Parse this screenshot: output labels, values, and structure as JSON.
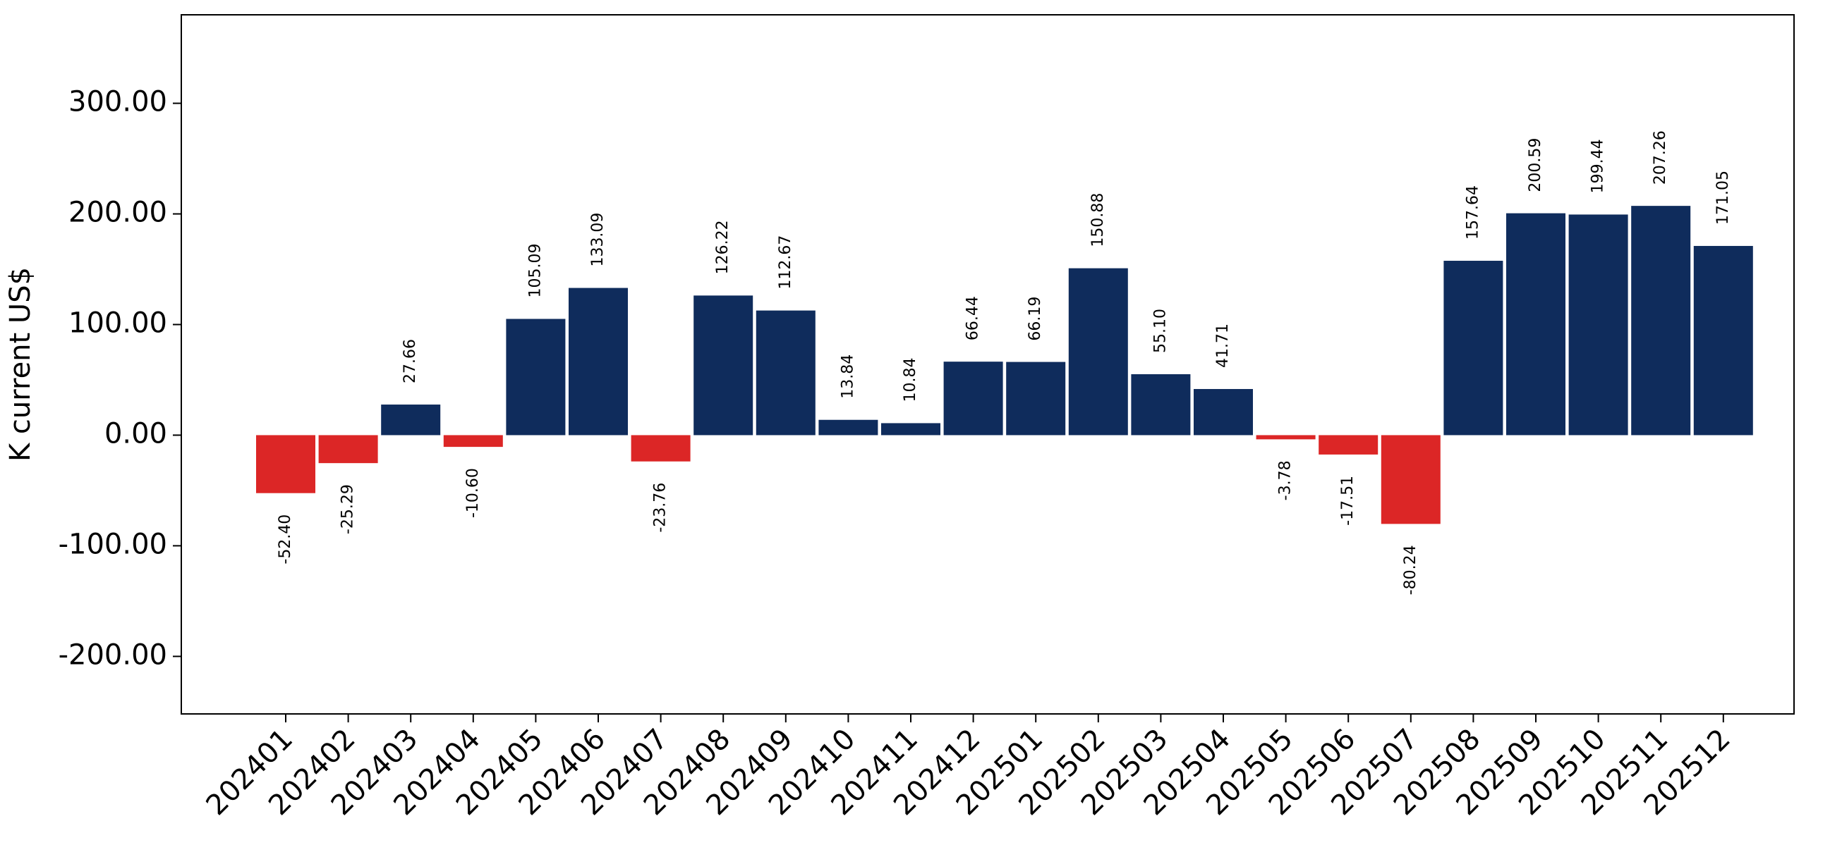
{
  "chart_data": {
    "type": "bar",
    "title": "",
    "xlabel": "",
    "ylabel": "K current US$",
    "ylim": [
      -252,
      380
    ],
    "yticks": [
      -200,
      -100,
      0,
      100,
      200,
      300
    ],
    "ytick_labels": [
      "-200.00",
      "-100.00",
      "0.00",
      "100.00",
      "200.00",
      "300.00"
    ],
    "grid": false,
    "legend": "none",
    "colors": {
      "positive": "#0f2c5c",
      "negative": "#dc2626"
    },
    "categories": [
      "202401",
      "202402",
      "202403",
      "202404",
      "202405",
      "202406",
      "202407",
      "202408",
      "202409",
      "202410",
      "202411",
      "202412",
      "202501",
      "202502",
      "202503",
      "202504",
      "202505",
      "202506",
      "202507",
      "202508",
      "202509",
      "202510",
      "202511",
      "202512"
    ],
    "values": [
      -52.4,
      -25.29,
      27.66,
      -10.6,
      105.09,
      133.09,
      -23.76,
      126.22,
      112.67,
      13.84,
      10.84,
      66.44,
      66.19,
      150.88,
      55.1,
      41.71,
      -3.78,
      -17.51,
      -80.24,
      157.64,
      200.59,
      199.44,
      207.26,
      171.05
    ],
    "data_labels": [
      "-52.40",
      "-25.29",
      "27.66",
      "-10.60",
      "105.09",
      "133.09",
      "-23.76",
      "126.22",
      "112.67",
      "13.84",
      "10.84",
      "66.44",
      "66.19",
      "150.88",
      "55.10",
      "41.71",
      "-3.78",
      "-17.51",
      "-80.24",
      "157.64",
      "200.59",
      "199.44",
      "207.26",
      "171.05"
    ]
  }
}
